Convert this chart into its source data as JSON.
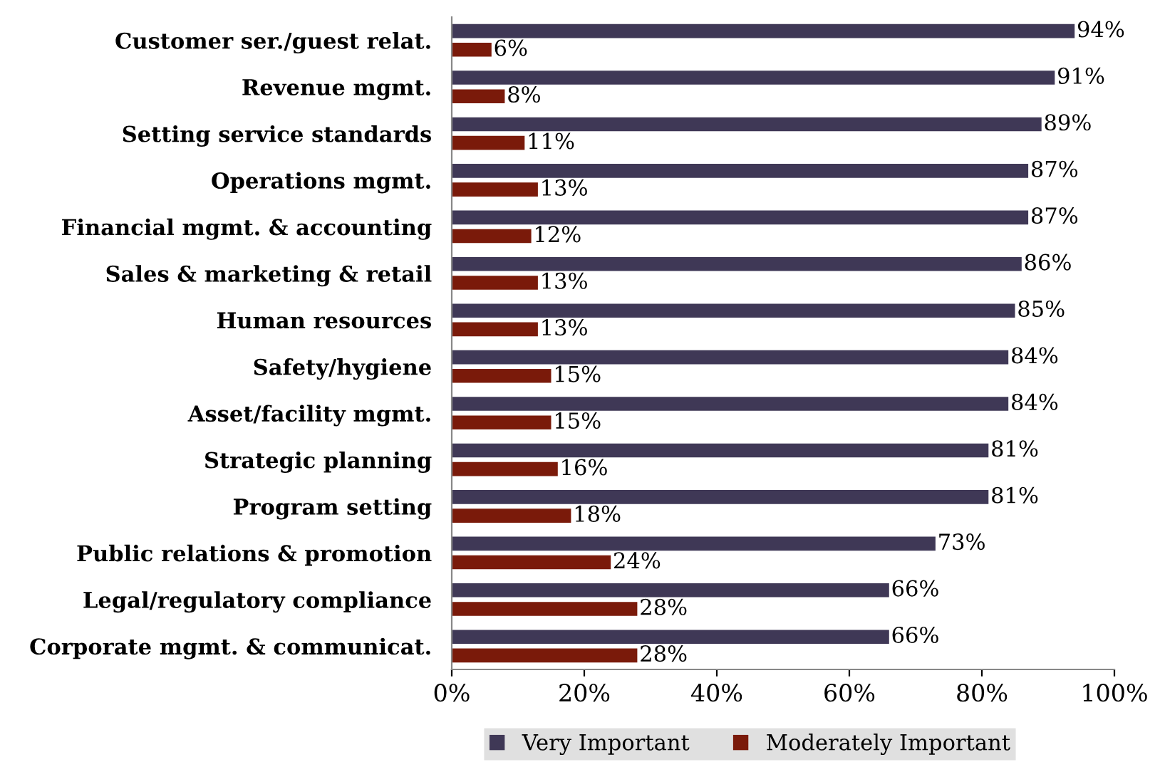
{
  "chart_data": {
    "type": "bar",
    "orientation": "horizontal",
    "categories": [
      "Customer ser./guest relat.",
      "Revenue mgmt.",
      "Setting service standards",
      "Operations mgmt.",
      "Financial mgmt. & accounting",
      "Sales & marketing & retail",
      "Human resources",
      "Safety/hygiene",
      "Asset/facility mgmt.",
      "Strategic planning",
      "Program setting",
      "Public relations & promotion",
      "Legal/regulatory compliance",
      "Corporate mgmt. & communicat."
    ],
    "series": [
      {
        "name": "Very Important",
        "color": "#3f3856",
        "values": [
          94,
          91,
          89,
          87,
          87,
          86,
          85,
          84,
          84,
          81,
          81,
          73,
          66,
          66
        ],
        "value_labels": [
          "94%",
          "91%",
          "89%",
          "87%",
          "87%",
          "86%",
          "85%",
          "84%",
          "84%",
          "81%",
          "81%",
          "73%",
          "66%",
          "66%"
        ]
      },
      {
        "name": "Moderately Important",
        "color": "#7a1a0a",
        "values": [
          6,
          8,
          11,
          13,
          12,
          13,
          13,
          15,
          15,
          16,
          18,
          24,
          28,
          28
        ],
        "value_labels": [
          "6%",
          "8%",
          "11%",
          "13%",
          "12%",
          "13%",
          "13%",
          "15%",
          "15%",
          "16%",
          "18%",
          "24%",
          "28%",
          "28%"
        ]
      }
    ],
    "xlim": [
      0,
      100
    ],
    "xticks": [
      {
        "value": 0,
        "label": "0%"
      },
      {
        "value": 20,
        "label": "20%"
      },
      {
        "value": 40,
        "label": "40%"
      },
      {
        "value": 60,
        "label": "60%"
      },
      {
        "value": 80,
        "label": "80%"
      },
      {
        "value": 100,
        "label": "100%"
      }
    ],
    "grid": false,
    "legend": "bottom"
  }
}
